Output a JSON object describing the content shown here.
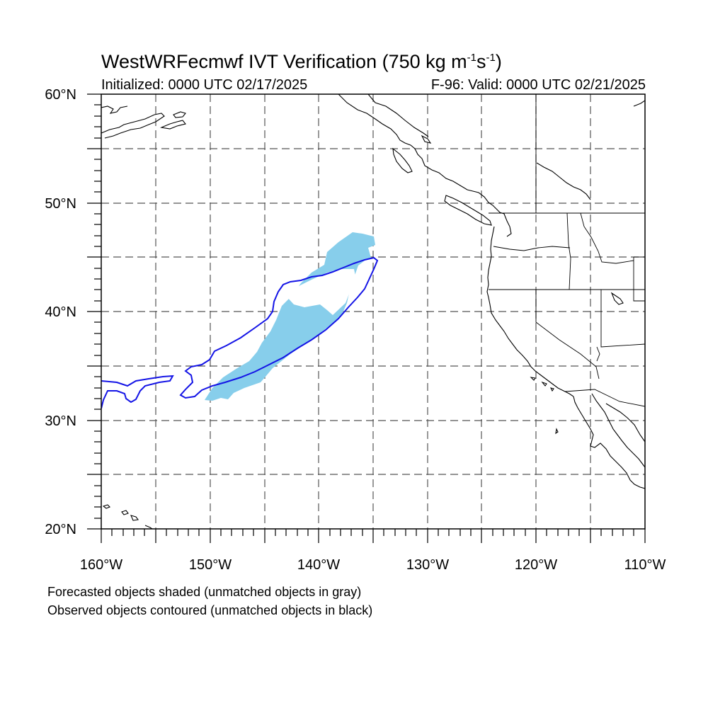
{
  "header": {
    "title_prefix": "WestWRFecmwf IVT Verification (750 kg m",
    "title_sup1": "-1",
    "title_mid": "s",
    "title_sup2": "-1",
    "title_suffix": ")",
    "initialized": "Initialized: 0000 UTC 02/17/2025",
    "valid": "F-96: Valid: 0000 UTC 02/21/2025"
  },
  "axes": {
    "lat_labels": [
      "60°N",
      "50°N",
      "40°N",
      "30°N",
      "20°N"
    ],
    "lon_labels": [
      "160°W",
      "150°W",
      "140°W",
      "130°W",
      "120°W",
      "110°W"
    ],
    "lat_range": [
      20,
      60
    ],
    "lon_range": [
      -160,
      -110
    ],
    "grid": "dashed",
    "projection": "cylindrical-equidistant"
  },
  "legend": {
    "line1": "Forecasted objects shaded (unmatched objects in gray)",
    "line2": "Observed objects contoured (unmatched objects in black)"
  },
  "colors": {
    "forecast_fill": "#87CEEB",
    "observed_contour": "#1414E6",
    "coastline": "#000000"
  }
}
